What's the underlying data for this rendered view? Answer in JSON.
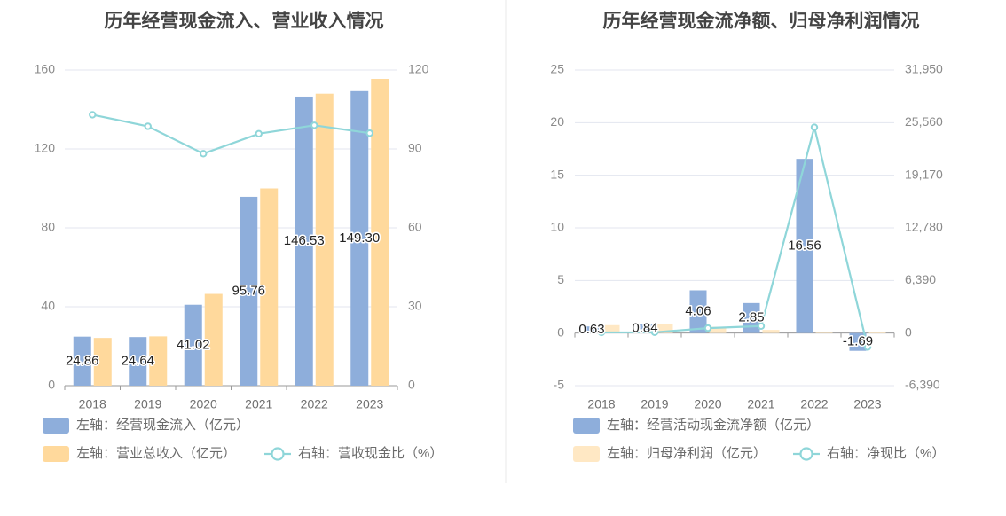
{
  "chart_data": [
    {
      "type": "bar",
      "title": "历年经营现金流入、营业收入情况",
      "categories": [
        "2018",
        "2019",
        "2020",
        "2021",
        "2022",
        "2023"
      ],
      "left_axis": {
        "ylim": [
          0,
          160
        ],
        "ticks": [
          "0",
          "40",
          "80",
          "120",
          "160"
        ]
      },
      "right_axis": {
        "ylim": [
          0,
          120
        ],
        "ticks": [
          "0",
          "30",
          "60",
          "90",
          "120"
        ]
      },
      "series": [
        {
          "name": "左轴：经营现金流入（亿元）",
          "type": "bar",
          "axis": "left",
          "color": "#8eaedb",
          "values": [
            24.86,
            24.64,
            41.02,
            95.76,
            146.53,
            149.3
          ],
          "labels": [
            "24.86",
            "24.64",
            "41.02",
            "95.76",
            "146.53",
            "149.30"
          ]
        },
        {
          "name": "左轴：营业总收入（亿元）",
          "type": "bar",
          "axis": "left",
          "color": "#ffd99c",
          "values": [
            24.2,
            25.0,
            46.5,
            100.0,
            148.0,
            155.5
          ]
        },
        {
          "name": "右轴：营收现金比（%）",
          "type": "line",
          "axis": "right",
          "color": "#8fd6d9",
          "values": [
            103.0,
            98.6,
            88.2,
            95.8,
            99.0,
            96.0
          ]
        }
      ],
      "grid": true,
      "legend_position": "bottom-left"
    },
    {
      "type": "bar",
      "title": "历年经营现金流净额、归母净利润情况",
      "categories": [
        "2018",
        "2019",
        "2020",
        "2021",
        "2022",
        "2023"
      ],
      "left_axis": {
        "ylim": [
          -5,
          25
        ],
        "ticks": [
          "-5",
          "0",
          "5",
          "10",
          "15",
          "20",
          "25"
        ]
      },
      "right_axis": {
        "ylim": [
          -6390,
          31950
        ],
        "ticks": [
          "-6,390",
          "0",
          "6,390",
          "12,780",
          "19,170",
          "25,560",
          "31,950"
        ]
      },
      "series": [
        {
          "name": "左轴：经营活动现金流净额（亿元）",
          "type": "bar",
          "axis": "left",
          "color": "#8eaedb",
          "values": [
            0.63,
            0.84,
            4.06,
            2.85,
            16.56,
            -1.69
          ],
          "labels": [
            "0.63",
            "0.84",
            "4.06",
            "2.85",
            "16.56",
            "-1.69"
          ]
        },
        {
          "name": "左轴：归母净利润（亿元）",
          "type": "bar",
          "axis": "left",
          "color": "#ffe8c4",
          "values": [
            0.75,
            0.9,
            0.6,
            0.3,
            0.1,
            0.05
          ]
        },
        {
          "name": "右轴：净现比（%）",
          "type": "line",
          "axis": "right",
          "color": "#8fd6d9",
          "values": [
            80,
            90,
            600,
            850,
            25000,
            -1700
          ]
        }
      ],
      "grid": true,
      "legend_position": "bottom-left"
    }
  ]
}
